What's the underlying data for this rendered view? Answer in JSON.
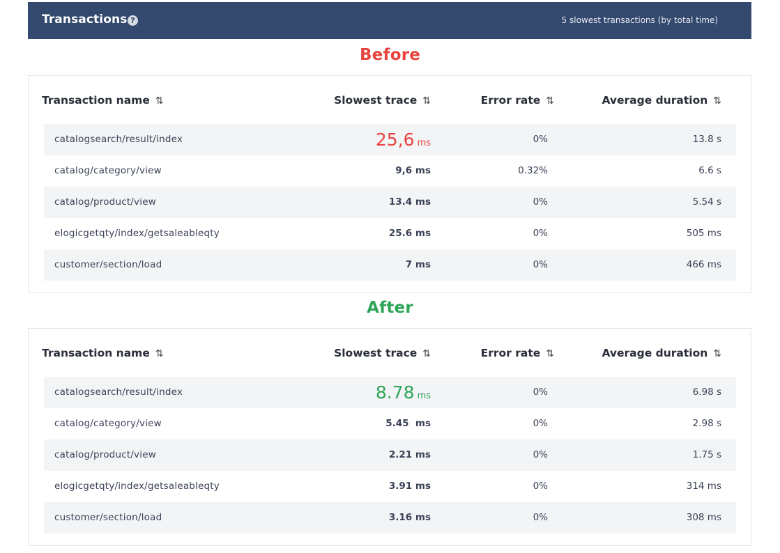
{
  "header": {
    "title": "Transactions",
    "help_glyph": "?",
    "subtitle": "5 slowest transactions (by total time)",
    "background": "#34496e"
  },
  "columns": {
    "name": "Transaction name",
    "slowest": "Slowest trace",
    "error": "Error rate",
    "avg": "Average duration",
    "sort_glyph": "⇅"
  },
  "before": {
    "title": "Before",
    "color": "#e8433e",
    "rows": [
      {
        "name": "catalogsearch/result/index",
        "slowest_value": "25,6",
        "slowest_unit": "ms",
        "error_rate": "0%",
        "avg_duration": "13.8 s"
      },
      {
        "name": "catalog/category/view",
        "slowest": "9,6 ms",
        "error_rate": "0.32%",
        "avg_duration": "6.6 s"
      },
      {
        "name": "catalog/product/view",
        "slowest": "13.4 ms",
        "error_rate": "0%",
        "avg_duration": "5.54 s"
      },
      {
        "name": "elogicgetqty/index/getsaleableqty",
        "slowest": "25.6 ms",
        "error_rate": "0%",
        "avg_duration": "505 ms"
      },
      {
        "name": "customer/section/load",
        "slowest": "7 ms",
        "error_rate": "0%",
        "avg_duration": "466 ms"
      }
    ]
  },
  "after": {
    "title": "After",
    "color": "#2fa55a",
    "rows": [
      {
        "name": "catalogsearch/result/index",
        "slowest_value": "8.78",
        "slowest_unit": "ms",
        "error_rate": "0%",
        "avg_duration": "6.98 s"
      },
      {
        "name": "catalog/category/view",
        "slowest": "5.45  ms",
        "error_rate": "0%",
        "avg_duration": "2.98 s"
      },
      {
        "name": "catalog/product/view",
        "slowest": "2.21 ms",
        "error_rate": "0%",
        "avg_duration": "1.75 s"
      },
      {
        "name": "elogicgetqty/index/getsaleableqty",
        "slowest": "3.91 ms",
        "error_rate": "0%",
        "avg_duration": "314 ms"
      },
      {
        "name": "customer/section/load",
        "slowest": "3.16 ms",
        "error_rate": "0%",
        "avg_duration": "308 ms"
      }
    ]
  }
}
